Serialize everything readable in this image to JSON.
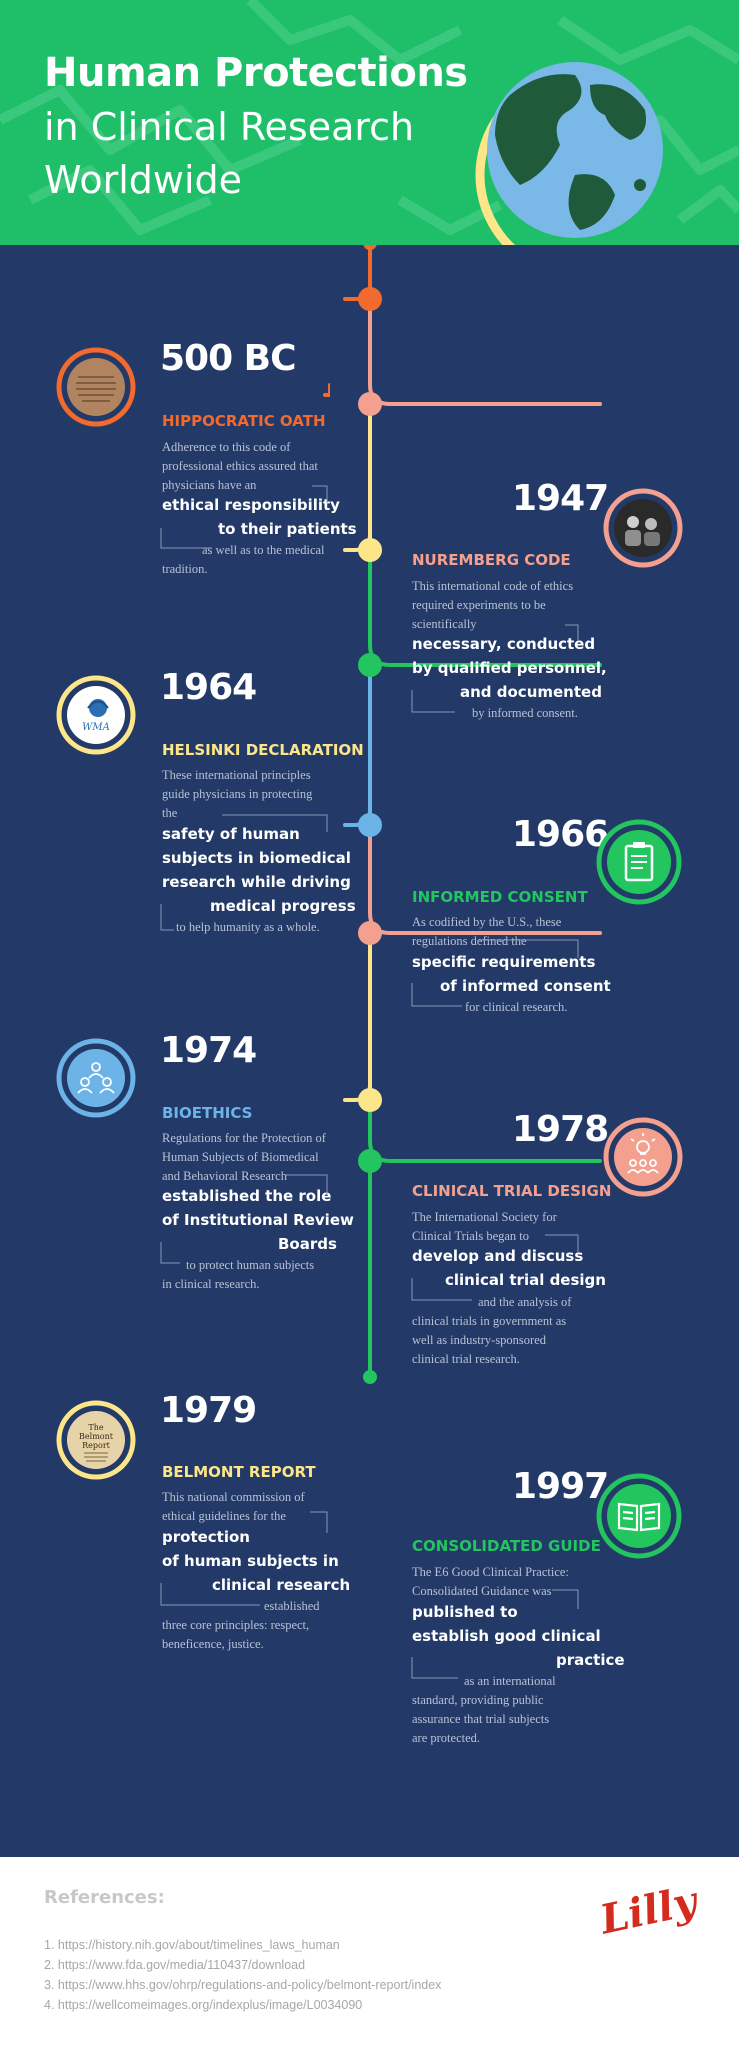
{
  "header": {
    "title_line1": "Human Protections",
    "title_line2": "in Clinical Research",
    "title_line3": "Worldwide"
  },
  "colors": {
    "hero_bg": "#1fbf6a",
    "main_bg": "#233a68",
    "orange": "#f26a2e",
    "pink": "#f4a08f",
    "yellow": "#fde68a",
    "green": "#22c55e",
    "blue": "#6cb4e8"
  },
  "entries": [
    {
      "year": "500 BC",
      "title": "HIPPOCRATIC OATH",
      "icon": "papyrus-icon",
      "lines_top": [
        "Adherence to this code of",
        "professional ethics assured that",
        "physicians have an"
      ],
      "lines_bold": [
        "ethical responsibility",
        "to their patients"
      ],
      "lines_bottom": [
        "as well as to the medical",
        "tradition."
      ]
    },
    {
      "year": "1947",
      "title": "NUREMBERG CODE",
      "icon": "photo-icon",
      "lines_top": [
        "This international code of ethics",
        "required experiments to be",
        "scientifically"
      ],
      "lines_bold": [
        "necessary, conducted",
        "by qualified personnel,",
        "and documented"
      ],
      "lines_bottom": [
        "by informed consent."
      ]
    },
    {
      "year": "1964",
      "title": "HELSINKI DECLARATION",
      "icon": "wma-logo-icon",
      "icon_text": "WMA",
      "lines_top": [
        "These international principles",
        "guide physicians in protecting",
        "the"
      ],
      "lines_bold": [
        "safety of human",
        "subjects in biomedical",
        "research while driving",
        "medical progress"
      ],
      "lines_bottom": [
        "to help humanity as a whole."
      ]
    },
    {
      "year": "1966",
      "title": "INFORMED CONSENT",
      "icon": "clipboard-icon",
      "lines_top": [
        "As codified by the U.S., these",
        "regulations defined the"
      ],
      "lines_bold": [
        "specific requirements",
        "of informed consent"
      ],
      "lines_bottom": [
        "for clinical research."
      ]
    },
    {
      "year": "1974",
      "title": "BIOETHICS",
      "icon": "people-network-icon",
      "lines_top": [
        "Regulations for the Protection of",
        "Human Subjects of Biomedical",
        "and Behavioral Research"
      ],
      "lines_bold": [
        "established the role",
        "of Institutional Review",
        "Boards"
      ],
      "lines_bottom": [
        "to protect human subjects",
        "in clinical research."
      ]
    },
    {
      "year": "1978",
      "title": "CLINICAL TRIAL DESIGN",
      "icon": "lightbulb-team-icon",
      "lines_top": [
        "The International Society for",
        "Clinical Trials began to"
      ],
      "lines_bold": [
        "develop and discuss",
        "clinical trial design"
      ],
      "lines_bottom": [
        "and the analysis of",
        "clinical trials in government as",
        "well as industry-sponsored",
        "clinical trial research."
      ]
    },
    {
      "year": "1979",
      "title": "BELMONT REPORT",
      "icon": "belmont-report-icon",
      "icon_lines": [
        "The",
        "Belmont",
        "Report"
      ],
      "lines_top": [
        "This national commission of",
        "ethical guidelines for the"
      ],
      "lines_bold": [
        "protection",
        "of human subjects in",
        "clinical research"
      ],
      "lines_bottom": [
        "established",
        "three core principles: respect,",
        "beneficence, justice."
      ]
    },
    {
      "year": "1997",
      "title": "CONSOLIDATED GUIDE",
      "icon": "open-book-icon",
      "lines_top": [
        "The E6 Good Clinical Practice:",
        "Consolidated Guidance was"
      ],
      "lines_bold": [
        "published to",
        "establish good clinical",
        "practice"
      ],
      "lines_bottom": [
        "as an international",
        "standard, providing public",
        "assurance that trial subjects",
        "are protected."
      ]
    }
  ],
  "references": {
    "title": "References:",
    "items": [
      "1. https://history.nih.gov/about/timelines_laws_human",
      "2. https://www.fda.gov/media/110437/download",
      "3. https://www.hhs.gov/ohrp/regulations-and-policy/belmont-report/index",
      "4. https://wellcomeimages.org/indexplus/image/L0034090"
    ]
  },
  "brand": {
    "logo": "Lilly"
  }
}
